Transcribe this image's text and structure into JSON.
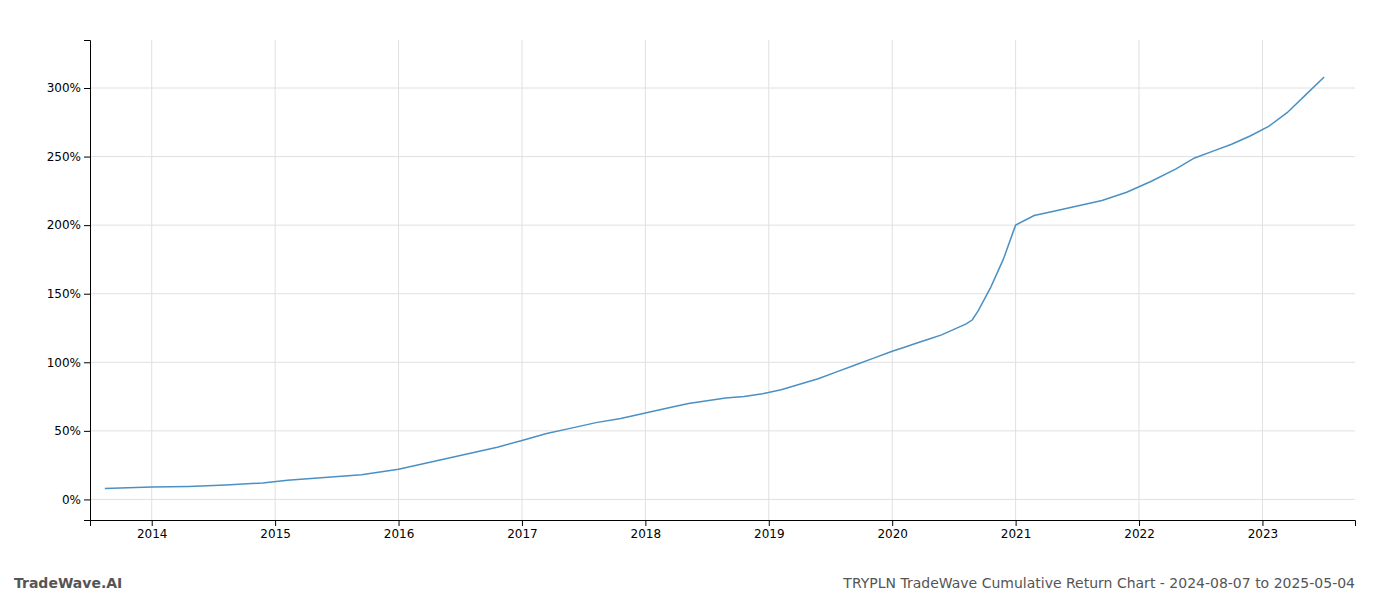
{
  "chart_data": {
    "type": "line",
    "title": "TRYPLN TradeWave Cumulative Return Chart - 2024-08-07 to 2025-05-04",
    "annotations": [
      "TradeWave.AI"
    ],
    "color": "#4a90c4",
    "grid": true,
    "xlim": [
      2013.5,
      2023.75
    ],
    "xticks": [
      2014,
      2015,
      2016,
      2017,
      2018,
      2019,
      2020,
      2021,
      2022,
      2023
    ],
    "ylim": [
      -15,
      335
    ],
    "yticks": [
      {
        "value": 0,
        "label": "0%"
      },
      {
        "value": 50,
        "label": "50%"
      },
      {
        "value": 100,
        "label": "100%"
      },
      {
        "value": 150,
        "label": "150%"
      },
      {
        "value": 200,
        "label": "200%"
      },
      {
        "value": 250,
        "label": "250%"
      },
      {
        "value": 300,
        "label": "300%"
      }
    ],
    "x": [
      2013.62,
      2014.0,
      2014.3,
      2014.6,
      2014.9,
      2015.1,
      2015.4,
      2015.7,
      2016.0,
      2016.2,
      2016.4,
      2016.6,
      2016.8,
      2017.0,
      2017.2,
      2017.4,
      2017.6,
      2017.8,
      2018.0,
      2018.2,
      2018.35,
      2018.5,
      2018.65,
      2018.8,
      2018.95,
      2019.1,
      2019.25,
      2019.4,
      2019.55,
      2019.7,
      2019.85,
      2020.0,
      2020.1,
      2020.2,
      2020.3,
      2020.4,
      2020.5,
      2020.55,
      2020.6,
      2020.65,
      2020.7,
      2020.8,
      2020.9,
      2021.0,
      2021.15,
      2021.3,
      2021.5,
      2021.7,
      2021.9,
      2022.1,
      2022.3,
      2022.45,
      2022.6,
      2022.75,
      2022.9,
      2023.05,
      2023.2,
      2023.35,
      2023.5
    ],
    "values": [
      8,
      9,
      9.5,
      10.5,
      12,
      14,
      16,
      18,
      22,
      26,
      30,
      34,
      38,
      43,
      48,
      52,
      56,
      59,
      63,
      67,
      70,
      72,
      74,
      75,
      77,
      80,
      84,
      88,
      93,
      98,
      103,
      108,
      111,
      114,
      117,
      120,
      124,
      126,
      128,
      131,
      138,
      155,
      175,
      200,
      207,
      210,
      214,
      218,
      224,
      232,
      241,
      249,
      254,
      259,
      265,
      272,
      282,
      295,
      308
    ]
  }
}
